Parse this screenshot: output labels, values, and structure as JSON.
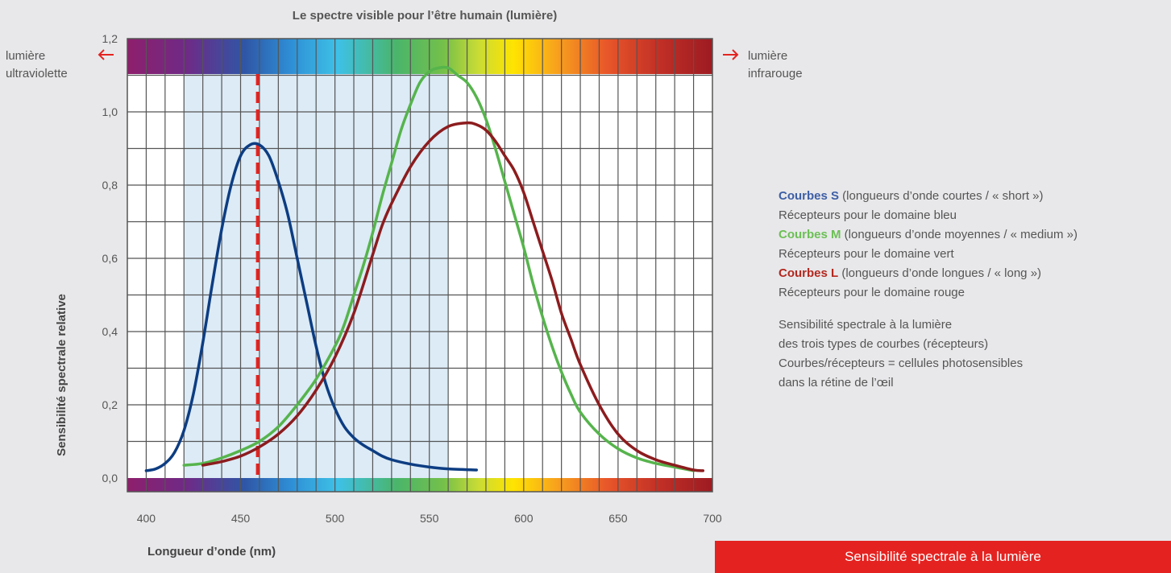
{
  "chart_data": {
    "type": "line",
    "title": "Le spectre visible pour l’être humain (lumière)",
    "xlabel": "Longueur d’onde (nm)",
    "ylabel": "Sensibilité spectrale relative",
    "xlim": [
      390,
      700
    ],
    "ylim": [
      0,
      1.2
    ],
    "x_ticks": [
      400,
      450,
      500,
      550,
      600,
      650,
      700
    ],
    "y_ticks": [
      "0,0",
      "0,2",
      "0,4",
      "0,6",
      "0,8",
      "1,0",
      "1,2"
    ],
    "y_tick_values": [
      0,
      0.2,
      0.4,
      0.6,
      0.8,
      1.0,
      1.2
    ],
    "visible_band": [
      420,
      560
    ],
    "marker_x": 459,
    "grid": true,
    "left_note": "lumière ultraviolette",
    "right_note": "lumière infrarouge",
    "series": [
      {
        "color": "#0d3d82",
        "x": [
          400,
          405,
          410,
          415,
          420,
          425,
          430,
          435,
          440,
          445,
          450,
          455,
          460,
          465,
          470,
          475,
          480,
          485,
          490,
          495,
          500,
          505,
          510,
          515,
          520,
          525,
          530,
          540,
          550,
          560,
          575
        ],
        "y": [
          0.02,
          0.025,
          0.04,
          0.07,
          0.13,
          0.23,
          0.37,
          0.53,
          0.68,
          0.8,
          0.88,
          0.91,
          0.91,
          0.88,
          0.81,
          0.72,
          0.6,
          0.48,
          0.36,
          0.26,
          0.19,
          0.14,
          0.11,
          0.09,
          0.075,
          0.06,
          0.05,
          0.038,
          0.03,
          0.025,
          0.022
        ]
      },
      {
        "color": "#56b44c",
        "x": [
          420,
          430,
          440,
          450,
          460,
          470,
          480,
          490,
          500,
          505,
          510,
          515,
          520,
          525,
          530,
          535,
          540,
          545,
          550,
          555,
          560,
          565,
          570,
          575,
          580,
          585,
          590,
          595,
          600,
          605,
          610,
          615,
          620,
          625,
          630,
          640,
          650,
          660,
          670,
          680,
          690
        ],
        "y": [
          0.035,
          0.04,
          0.055,
          0.075,
          0.1,
          0.14,
          0.2,
          0.27,
          0.36,
          0.42,
          0.5,
          0.58,
          0.67,
          0.77,
          0.86,
          0.95,
          1.02,
          1.08,
          1.11,
          1.12,
          1.12,
          1.1,
          1.08,
          1.04,
          0.98,
          0.9,
          0.81,
          0.72,
          0.63,
          0.53,
          0.44,
          0.36,
          0.29,
          0.23,
          0.18,
          0.12,
          0.08,
          0.055,
          0.04,
          0.03,
          0.02
        ]
      },
      {
        "color": "#8c1c1e",
        "x": [
          430,
          440,
          450,
          460,
          470,
          480,
          490,
          500,
          510,
          520,
          525,
          530,
          540,
          550,
          560,
          570,
          575,
          580,
          585,
          590,
          595,
          600,
          605,
          610,
          615,
          620,
          625,
          630,
          640,
          650,
          660,
          670,
          680,
          690,
          695
        ],
        "y": [
          0.035,
          0.045,
          0.06,
          0.085,
          0.12,
          0.17,
          0.24,
          0.33,
          0.45,
          0.61,
          0.69,
          0.75,
          0.85,
          0.92,
          0.96,
          0.97,
          0.965,
          0.95,
          0.92,
          0.88,
          0.84,
          0.78,
          0.7,
          0.62,
          0.54,
          0.45,
          0.38,
          0.31,
          0.2,
          0.12,
          0.075,
          0.05,
          0.035,
          0.022,
          0.02
        ]
      }
    ]
  },
  "legend": {
    "s": {
      "title": "Courbes S",
      "desc": " (longueurs d’onde courtes / « short »)",
      "sub": "Récepteurs pour le domaine bleu",
      "color": "#3d5fa6"
    },
    "m": {
      "title": "Courbes M",
      "desc": " (longueurs d’onde moyennes / « medium »)",
      "sub": "Récepteurs pour le domaine vert",
      "color": "#6cbf55"
    },
    "l": {
      "title": "Courbes L",
      "desc": " (longueurs d’onde longues / « long »)",
      "sub": "Récepteurs pour le domaine rouge",
      "color": "#b3281f"
    }
  },
  "notes": [
    "Sensibilité spectrale à la lumière",
    "des trois types de courbes (récepteurs)",
    "Courbes/récepteurs = cellules photosensibles",
    "dans la rétine de l’œil"
  ],
  "footer_box": {
    "label": "Sensibilité spectrale à la lumière"
  }
}
